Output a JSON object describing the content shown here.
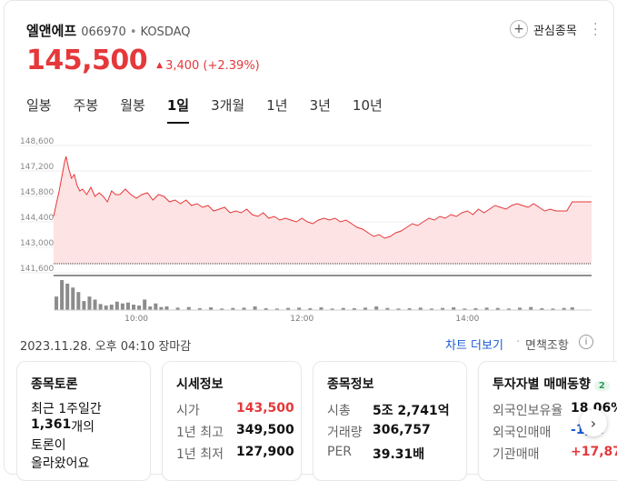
{
  "stock": {
    "name": "엘앤에프",
    "code": "066970",
    "separator": "•",
    "market": "KOSDAQ",
    "price": "145,500",
    "change_icon": "triangle-up-icon",
    "change": "3,400",
    "change_pct": "(+2.39%)",
    "watchlist_label": "관심종목",
    "colors": {
      "up": "#e5383b",
      "link": "#1a5bd6"
    }
  },
  "tabs": [
    {
      "label": "일봉",
      "active": false
    },
    {
      "label": "주봉",
      "active": false
    },
    {
      "label": "월봉",
      "active": false
    },
    {
      "label": "1일",
      "active": true
    },
    {
      "label": "3개월",
      "active": false
    },
    {
      "label": "1년",
      "active": false
    },
    {
      "label": "3년",
      "active": false
    },
    {
      "label": "10년",
      "active": false
    }
  ],
  "chart_data": {
    "type": "area",
    "y_ticks": [
      "148,600",
      "147,200",
      "145,800",
      "144,400",
      "143,000",
      "141,600"
    ],
    "y_tick_values": [
      148600,
      147200,
      145800,
      144400,
      143000,
      141600
    ],
    "ylim": [
      141600,
      148600
    ],
    "x_ticks": [
      "10:00",
      "12:00",
      "14:00"
    ],
    "x_tick_minutes": [
      60,
      180,
      300
    ],
    "x_range_minutes": [
      0,
      390
    ],
    "reference_price": 142100,
    "price_series": [
      {
        "t": 0,
        "v": 144700
      },
      {
        "t": 2,
        "v": 145400
      },
      {
        "t": 4,
        "v": 146100
      },
      {
        "t": 6,
        "v": 146900
      },
      {
        "t": 8,
        "v": 147700
      },
      {
        "t": 9,
        "v": 148000
      },
      {
        "t": 11,
        "v": 147300
      },
      {
        "t": 13,
        "v": 146800
      },
      {
        "t": 15,
        "v": 147000
      },
      {
        "t": 17,
        "v": 146400
      },
      {
        "t": 19,
        "v": 146100
      },
      {
        "t": 21,
        "v": 146200
      },
      {
        "t": 24,
        "v": 145900
      },
      {
        "t": 27,
        "v": 146300
      },
      {
        "t": 30,
        "v": 145800
      },
      {
        "t": 33,
        "v": 146000
      },
      {
        "t": 36,
        "v": 145800
      },
      {
        "t": 39,
        "v": 145500
      },
      {
        "t": 42,
        "v": 146100
      },
      {
        "t": 45,
        "v": 145900
      },
      {
        "t": 48,
        "v": 145900
      },
      {
        "t": 52,
        "v": 146200
      },
      {
        "t": 56,
        "v": 145900
      },
      {
        "t": 60,
        "v": 145700
      },
      {
        "t": 64,
        "v": 145900
      },
      {
        "t": 68,
        "v": 146000
      },
      {
        "t": 72,
        "v": 145600
      },
      {
        "t": 76,
        "v": 145900
      },
      {
        "t": 80,
        "v": 145800
      },
      {
        "t": 84,
        "v": 145500
      },
      {
        "t": 88,
        "v": 145600
      },
      {
        "t": 92,
        "v": 145400
      },
      {
        "t": 96,
        "v": 145600
      },
      {
        "t": 100,
        "v": 145300
      },
      {
        "t": 104,
        "v": 145400
      },
      {
        "t": 108,
        "v": 145200
      },
      {
        "t": 112,
        "v": 145300
      },
      {
        "t": 116,
        "v": 145000
      },
      {
        "t": 120,
        "v": 145100
      },
      {
        "t": 124,
        "v": 145200
      },
      {
        "t": 128,
        "v": 144900
      },
      {
        "t": 132,
        "v": 145000
      },
      {
        "t": 136,
        "v": 144900
      },
      {
        "t": 140,
        "v": 145100
      },
      {
        "t": 144,
        "v": 144800
      },
      {
        "t": 148,
        "v": 144700
      },
      {
        "t": 152,
        "v": 144900
      },
      {
        "t": 156,
        "v": 144600
      },
      {
        "t": 160,
        "v": 144700
      },
      {
        "t": 164,
        "v": 144500
      },
      {
        "t": 168,
        "v": 144600
      },
      {
        "t": 172,
        "v": 144500
      },
      {
        "t": 176,
        "v": 144400
      },
      {
        "t": 180,
        "v": 144600
      },
      {
        "t": 184,
        "v": 144400
      },
      {
        "t": 188,
        "v": 144300
      },
      {
        "t": 192,
        "v": 144500
      },
      {
        "t": 196,
        "v": 144600
      },
      {
        "t": 200,
        "v": 144500
      },
      {
        "t": 204,
        "v": 144600
      },
      {
        "t": 208,
        "v": 144400
      },
      {
        "t": 212,
        "v": 144500
      },
      {
        "t": 216,
        "v": 144300
      },
      {
        "t": 220,
        "v": 144100
      },
      {
        "t": 224,
        "v": 144000
      },
      {
        "t": 228,
        "v": 143800
      },
      {
        "t": 232,
        "v": 143600
      },
      {
        "t": 236,
        "v": 143700
      },
      {
        "t": 240,
        "v": 143500
      },
      {
        "t": 244,
        "v": 143600
      },
      {
        "t": 248,
        "v": 143800
      },
      {
        "t": 252,
        "v": 143900
      },
      {
        "t": 256,
        "v": 144100
      },
      {
        "t": 260,
        "v": 144300
      },
      {
        "t": 264,
        "v": 144200
      },
      {
        "t": 268,
        "v": 144400
      },
      {
        "t": 272,
        "v": 144600
      },
      {
        "t": 276,
        "v": 144500
      },
      {
        "t": 280,
        "v": 144700
      },
      {
        "t": 284,
        "v": 144600
      },
      {
        "t": 288,
        "v": 144800
      },
      {
        "t": 292,
        "v": 144700
      },
      {
        "t": 296,
        "v": 144900
      },
      {
        "t": 300,
        "v": 145000
      },
      {
        "t": 304,
        "v": 144800
      },
      {
        "t": 308,
        "v": 145100
      },
      {
        "t": 312,
        "v": 144900
      },
      {
        "t": 316,
        "v": 145100
      },
      {
        "t": 320,
        "v": 145300
      },
      {
        "t": 324,
        "v": 145200
      },
      {
        "t": 328,
        "v": 145100
      },
      {
        "t": 332,
        "v": 145300
      },
      {
        "t": 336,
        "v": 145400
      },
      {
        "t": 340,
        "v": 145300
      },
      {
        "t": 344,
        "v": 145200
      },
      {
        "t": 348,
        "v": 145400
      },
      {
        "t": 352,
        "v": 145200
      },
      {
        "t": 356,
        "v": 145000
      },
      {
        "t": 360,
        "v": 145100
      },
      {
        "t": 364,
        "v": 145000
      },
      {
        "t": 368,
        "v": 145000
      },
      {
        "t": 372,
        "v": 145000
      },
      {
        "t": 376,
        "v": 145500
      },
      {
        "t": 390,
        "v": 145500
      }
    ],
    "volume_relative": [
      {
        "t": 2,
        "v": 0.45
      },
      {
        "t": 6,
        "v": 1.0
      },
      {
        "t": 10,
        "v": 0.88
      },
      {
        "t": 14,
        "v": 0.75
      },
      {
        "t": 18,
        "v": 0.6
      },
      {
        "t": 22,
        "v": 0.3
      },
      {
        "t": 26,
        "v": 0.45
      },
      {
        "t": 30,
        "v": 0.35
      },
      {
        "t": 34,
        "v": 0.2
      },
      {
        "t": 38,
        "v": 0.15
      },
      {
        "t": 42,
        "v": 0.18
      },
      {
        "t": 46,
        "v": 0.28
      },
      {
        "t": 50,
        "v": 0.22
      },
      {
        "t": 54,
        "v": 0.25
      },
      {
        "t": 58,
        "v": 0.18
      },
      {
        "t": 62,
        "v": 0.15
      },
      {
        "t": 66,
        "v": 0.35
      },
      {
        "t": 70,
        "v": 0.12
      },
      {
        "t": 74,
        "v": 0.22
      },
      {
        "t": 78,
        "v": 0.1
      },
      {
        "t": 82,
        "v": 0.12
      },
      {
        "t": 90,
        "v": 0.08
      },
      {
        "t": 98,
        "v": 0.1
      },
      {
        "t": 106,
        "v": 0.06
      },
      {
        "t": 114,
        "v": 0.09
      },
      {
        "t": 122,
        "v": 0.05
      },
      {
        "t": 130,
        "v": 0.07
      },
      {
        "t": 138,
        "v": 0.08
      },
      {
        "t": 146,
        "v": 0.12
      },
      {
        "t": 154,
        "v": 0.06
      },
      {
        "t": 162,
        "v": 0.05
      },
      {
        "t": 170,
        "v": 0.07
      },
      {
        "t": 178,
        "v": 0.08
      },
      {
        "t": 186,
        "v": 0.06
      },
      {
        "t": 194,
        "v": 0.09
      },
      {
        "t": 202,
        "v": 0.05
      },
      {
        "t": 210,
        "v": 0.07
      },
      {
        "t": 218,
        "v": 0.06
      },
      {
        "t": 226,
        "v": 0.08
      },
      {
        "t": 234,
        "v": 0.12
      },
      {
        "t": 242,
        "v": 0.07
      },
      {
        "t": 250,
        "v": 0.05
      },
      {
        "t": 258,
        "v": 0.06
      },
      {
        "t": 266,
        "v": 0.08
      },
      {
        "t": 274,
        "v": 0.05
      },
      {
        "t": 282,
        "v": 0.07
      },
      {
        "t": 290,
        "v": 0.09
      },
      {
        "t": 298,
        "v": 0.05
      },
      {
        "t": 306,
        "v": 0.06
      },
      {
        "t": 314,
        "v": 0.08
      },
      {
        "t": 322,
        "v": 0.07
      },
      {
        "t": 330,
        "v": 0.05
      },
      {
        "t": 338,
        "v": 0.08
      },
      {
        "t": 346,
        "v": 0.1
      },
      {
        "t": 354,
        "v": 0.06
      },
      {
        "t": 362,
        "v": 0.05
      },
      {
        "t": 370,
        "v": 0.07
      },
      {
        "t": 376,
        "v": 0.09
      }
    ],
    "colors": {
      "line": "#e5383b",
      "fill": "#fde3e3",
      "volume": "#8c8c8c",
      "grid": "#ededed"
    }
  },
  "footer": {
    "timestamp": "2023.11.28. 오후 04:10 장마감",
    "chart_link": "차트 더보기",
    "separator": "·",
    "disclaimer": "면책조항",
    "info_icon": "info-icon",
    "info_glyph": "i"
  },
  "cards": {
    "discussion": {
      "title": "종목토론",
      "line1": "최근 1주일간",
      "count": "1,361",
      "line2_suffix": "개의",
      "line3": "토론이",
      "line4": "올라왔어요"
    },
    "quote": {
      "title": "시세정보",
      "rows": [
        {
          "k": "시가",
          "v": "143,500"
        },
        {
          "k": "1년 최고",
          "v": "349,500"
        },
        {
          "k": "1년 최저",
          "v": "127,900"
        }
      ]
    },
    "company": {
      "title": "종목정보",
      "rows": [
        {
          "k": "시총",
          "v": "5조 2,741억"
        },
        {
          "k": "거래량",
          "v": "306,757"
        },
        {
          "k": "PER",
          "v": "39.31배"
        }
      ]
    },
    "investor": {
      "title": "투자자별 매매동향",
      "badge": "2",
      "rows": [
        {
          "k": "외국인보유율",
          "v": "18.06%"
        },
        {
          "k": "외국인매매",
          "v": "-1,..."
        },
        {
          "k": "기관매매",
          "v": "+17,87..."
        }
      ]
    }
  },
  "next_icon": "chevron-right-icon",
  "next_glyph": "›"
}
